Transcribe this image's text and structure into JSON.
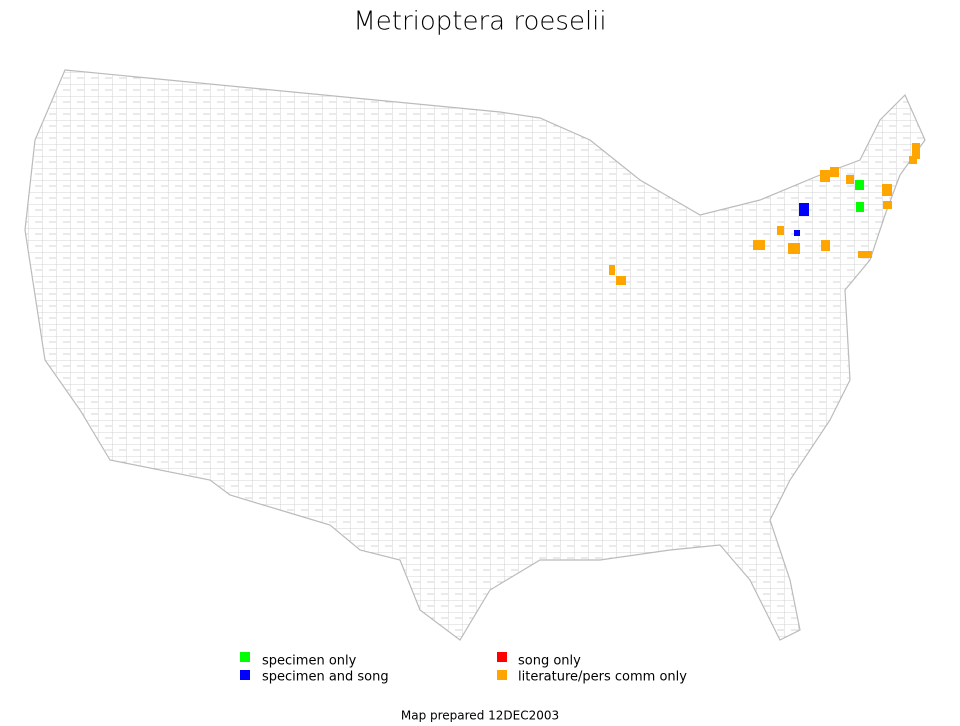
{
  "title": "Metrioptera roeselii",
  "legend": [
    {
      "label": "specimen only",
      "color": "#00ff00"
    },
    {
      "label": "specimen and song",
      "color": "#0000ff"
    },
    {
      "label": "song only",
      "color": "#ff0000"
    },
    {
      "label": "literature/pers comm only",
      "color": "#ffa500"
    }
  ],
  "footer": "Map prepared 12DEC2003"
}
